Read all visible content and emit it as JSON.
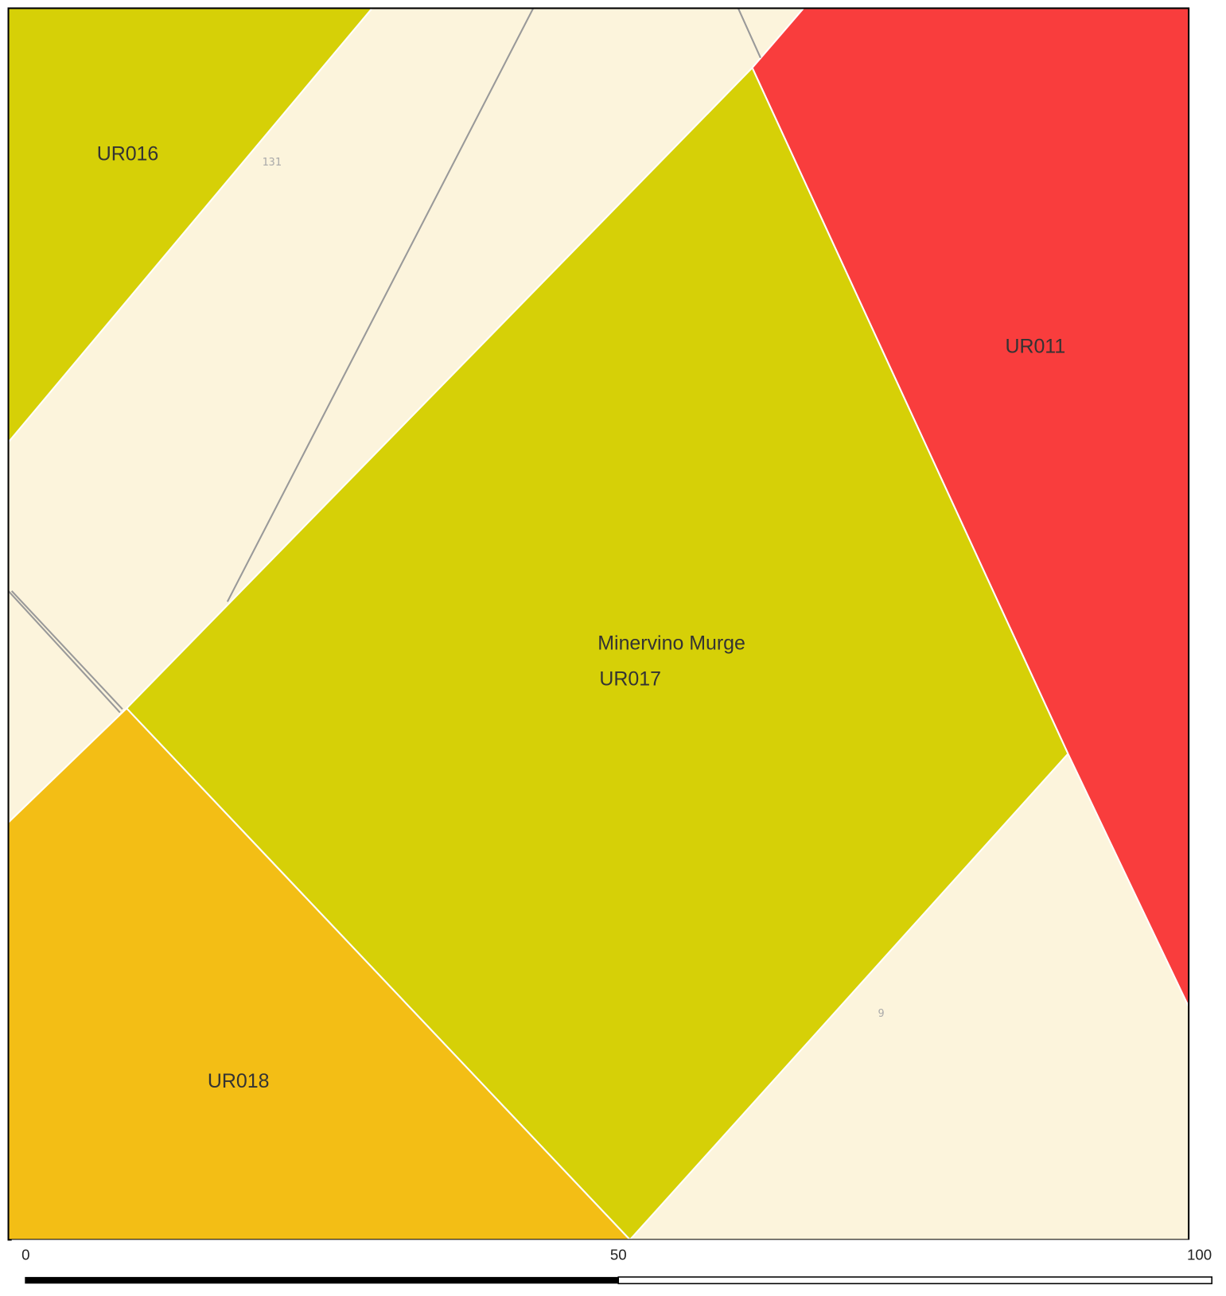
{
  "zones": [
    {
      "name": "UR016"
    },
    {
      "name": "Minervino Murge",
      "code": "UR017"
    },
    {
      "name": "UR011"
    },
    {
      "name": "UR018"
    }
  ],
  "road_labels": [
    "131",
    "9"
  ],
  "scale_bar": {
    "ticks": [
      0,
      50,
      100
    ]
  }
}
